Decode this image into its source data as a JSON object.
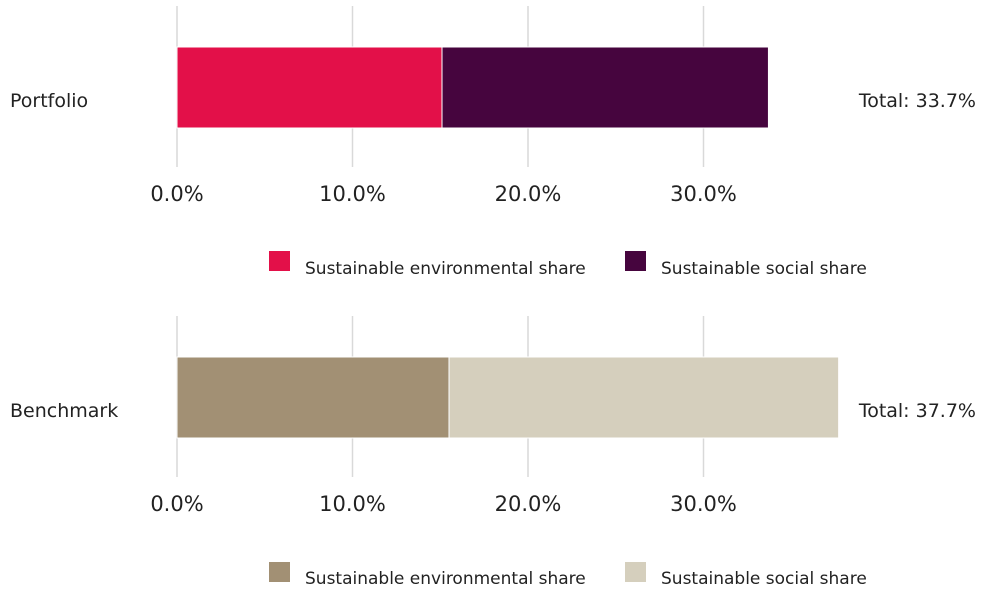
{
  "chart_data": [
    {
      "type": "bar",
      "orientation": "horizontal",
      "stacked": true,
      "categories": [
        "Portfolio"
      ],
      "series": [
        {
          "name": "Sustainable environmental share",
          "values": [
            15.1
          ],
          "color": "#e31049"
        },
        {
          "name": "Sustainable social share",
          "values": [
            18.6
          ],
          "color": "#46053e"
        }
      ],
      "total_label": "Total: 33.7%",
      "xlim": [
        0,
        33.7
      ],
      "x_ticks": [
        0,
        10,
        20,
        30
      ],
      "x_tick_labels": [
        "0.0%",
        "10.0%",
        "20.0%",
        "30.0%"
      ],
      "grid": true,
      "legend_position": "bottom"
    },
    {
      "type": "bar",
      "orientation": "horizontal",
      "stacked": true,
      "categories": [
        "Benchmark"
      ],
      "series": [
        {
          "name": "Sustainable environmental share",
          "values": [
            15.5
          ],
          "color": "#a29074"
        },
        {
          "name": "Sustainable social share",
          "values": [
            22.2
          ],
          "color": "#d5cfbd"
        }
      ],
      "total_label": "Total: 37.7%",
      "xlim": [
        0,
        37.7
      ],
      "x_ticks": [
        0,
        10,
        20,
        30
      ],
      "x_tick_labels": [
        "0.0%",
        "10.0%",
        "20.0%",
        "30.0%"
      ],
      "grid": true,
      "legend_position": "bottom"
    }
  ]
}
